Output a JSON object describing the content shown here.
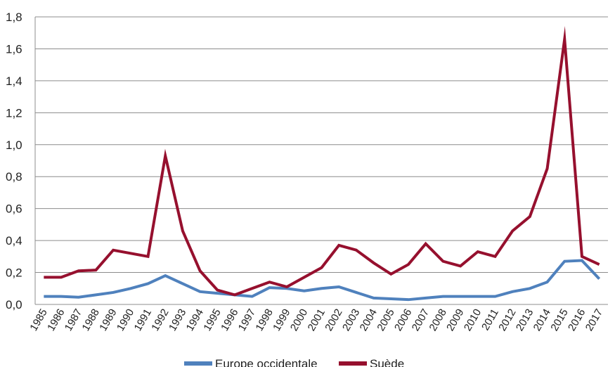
{
  "chart_data": {
    "type": "line",
    "title": "",
    "xlabel": "",
    "ylabel": "",
    "ylim": [
      0,
      1.8
    ],
    "yticks": [
      "0,0",
      "0,2",
      "0,4",
      "0,6",
      "0,8",
      "1,0",
      "1,2",
      "1,4",
      "1,6",
      "1,8"
    ],
    "categories": [
      "1985",
      "1986",
      "1987",
      "1988",
      "1989",
      "1990",
      "1991",
      "1992",
      "1993",
      "1994",
      "1995",
      "1996",
      "1997",
      "1998",
      "1999",
      "2000",
      "2001",
      "2002",
      "2003",
      "2004",
      "2005",
      "2006",
      "2007",
      "2008",
      "2009",
      "2010",
      "2011",
      "2012",
      "2013",
      "2014",
      "2015",
      "2016",
      "2017"
    ],
    "grid": true,
    "legend_position": "bottom",
    "series": [
      {
        "name": "Europe occidentale",
        "color": "#4f81bd",
        "values": [
          0.05,
          0.05,
          0.045,
          0.06,
          0.075,
          0.1,
          0.13,
          0.18,
          0.13,
          0.08,
          0.07,
          0.06,
          0.05,
          0.105,
          0.1,
          0.085,
          0.1,
          0.11,
          0.075,
          0.04,
          0.035,
          0.03,
          0.04,
          0.05,
          0.05,
          0.05,
          0.05,
          0.08,
          0.1,
          0.14,
          0.27,
          0.275,
          0.16
        ]
      },
      {
        "name": "Suède",
        "color": "#96102e",
        "values": [
          0.17,
          0.17,
          0.21,
          0.215,
          0.34,
          0.32,
          0.3,
          0.93,
          0.46,
          0.21,
          0.09,
          0.06,
          0.1,
          0.14,
          0.11,
          0.17,
          0.23,
          0.37,
          0.34,
          0.26,
          0.19,
          0.25,
          0.38,
          0.27,
          0.24,
          0.33,
          0.3,
          0.46,
          0.55,
          0.85,
          1.66,
          0.3,
          0.25
        ]
      }
    ]
  }
}
